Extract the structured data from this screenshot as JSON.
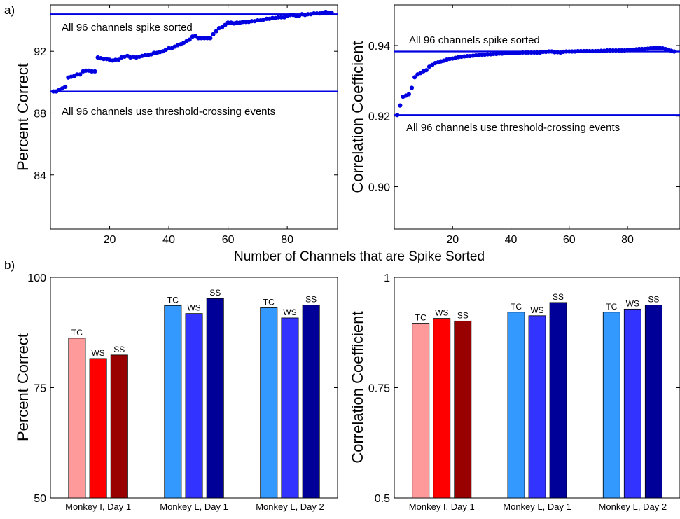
{
  "panel_labels": {
    "a": "a)",
    "b": "b)"
  },
  "shared_xlabel": "Number of Channels that are Spike Sorted",
  "chart_data": [
    {
      "type": "scatter",
      "ylabel": "Percent Correct",
      "xlim": [
        0,
        97
      ],
      "ylim": [
        80.5,
        95
      ],
      "xticks": [
        20,
        40,
        60,
        80
      ],
      "yticks": [
        84,
        88,
        92
      ],
      "color": "#0000e0",
      "hlines": [
        {
          "y": 94.4,
          "label": "All 96 channels spike sorted"
        },
        {
          "y": 89.4,
          "label": "All 96 channels use threshold-crossing events"
        }
      ],
      "x": [
        1,
        2,
        3,
        4,
        5,
        6,
        7,
        8,
        9,
        10,
        11,
        12,
        13,
        14,
        15,
        16,
        17,
        18,
        19,
        20,
        21,
        22,
        23,
        24,
        25,
        26,
        27,
        28,
        29,
        30,
        31,
        32,
        33,
        34,
        35,
        36,
        37,
        38,
        39,
        40,
        41,
        42,
        43,
        44,
        45,
        46,
        47,
        48,
        49,
        50,
        51,
        52,
        53,
        54,
        55,
        56,
        57,
        58,
        59,
        60,
        61,
        62,
        63,
        64,
        65,
        66,
        67,
        68,
        69,
        70,
        71,
        72,
        73,
        74,
        75,
        76,
        77,
        78,
        79,
        80,
        81,
        82,
        83,
        84,
        85,
        86,
        87,
        88,
        89,
        90,
        91,
        92,
        93,
        94,
        95
      ],
      "y": [
        89.4,
        89.4,
        89.5,
        89.6,
        89.7,
        90.3,
        90.35,
        90.4,
        90.5,
        90.5,
        90.7,
        90.75,
        90.75,
        90.7,
        90.7,
        91.6,
        91.55,
        91.5,
        91.5,
        91.45,
        91.4,
        91.45,
        91.45,
        91.6,
        91.65,
        91.7,
        91.6,
        91.65,
        91.6,
        91.65,
        91.7,
        91.75,
        91.75,
        91.8,
        91.9,
        91.9,
        91.95,
        92.0,
        92.1,
        92.2,
        92.2,
        92.3,
        92.4,
        92.45,
        92.55,
        92.65,
        92.75,
        92.95,
        93.0,
        92.85,
        92.85,
        92.85,
        92.85,
        92.85,
        93.1,
        93.3,
        93.5,
        93.55,
        93.7,
        93.85,
        93.85,
        93.8,
        93.85,
        93.85,
        93.9,
        93.9,
        93.9,
        93.95,
        93.95,
        94.0,
        94.0,
        94.05,
        94.1,
        94.1,
        94.15,
        94.15,
        94.2,
        94.2,
        94.2,
        94.3,
        94.35,
        94.35,
        94.3,
        94.3,
        94.4,
        94.35,
        94.4,
        94.4,
        94.45,
        94.45,
        94.45,
        94.5,
        94.55,
        94.5,
        94.5
      ]
    },
    {
      "type": "scatter",
      "ylabel": "Correlation Coefficient",
      "xlim": [
        0,
        98
      ],
      "ylim": [
        0.888,
        0.9515
      ],
      "xticks": [
        20,
        40,
        60,
        80
      ],
      "yticks": [
        0.9,
        0.92,
        0.94
      ],
      "color": "#0000e0",
      "hlines": [
        {
          "y": 0.9383,
          "label": "All 96 channels spike sorted"
        },
        {
          "y": 0.9203,
          "label": "All 96 channels use threshold-crossing events"
        }
      ],
      "x": [
        1,
        2,
        3,
        4,
        5,
        6,
        7,
        8,
        9,
        10,
        11,
        12,
        13,
        14,
        15,
        16,
        17,
        18,
        19,
        20,
        21,
        22,
        23,
        24,
        25,
        26,
        27,
        28,
        29,
        30,
        31,
        32,
        33,
        34,
        35,
        36,
        37,
        38,
        39,
        40,
        41,
        42,
        43,
        44,
        45,
        46,
        47,
        48,
        49,
        50,
        51,
        52,
        53,
        54,
        55,
        56,
        57,
        58,
        59,
        60,
        61,
        62,
        63,
        64,
        65,
        66,
        67,
        68,
        69,
        70,
        71,
        72,
        73,
        74,
        75,
        76,
        77,
        78,
        79,
        80,
        81,
        82,
        83,
        84,
        85,
        86,
        87,
        88,
        89,
        90,
        91,
        92,
        93,
        94,
        95,
        96
      ],
      "y": [
        0.9203,
        0.923,
        0.9255,
        0.9258,
        0.9262,
        0.928,
        0.931,
        0.9318,
        0.9322,
        0.9327,
        0.933,
        0.934,
        0.9345,
        0.935,
        0.9352,
        0.9355,
        0.9357,
        0.936,
        0.9362,
        0.9363,
        0.9365,
        0.9367,
        0.9368,
        0.9369,
        0.937,
        0.937,
        0.9371,
        0.9372,
        0.9373,
        0.9374,
        0.9374,
        0.9375,
        0.9375,
        0.9376,
        0.9376,
        0.9377,
        0.9377,
        0.9378,
        0.9378,
        0.9378,
        0.9379,
        0.9379,
        0.9379,
        0.938,
        0.938,
        0.938,
        0.938,
        0.938,
        0.938,
        0.938,
        0.9382,
        0.9382,
        0.9383,
        0.9383,
        0.9381,
        0.9381,
        0.938,
        0.9382,
        0.9383,
        0.9383,
        0.9383,
        0.9383,
        0.9384,
        0.9384,
        0.9384,
        0.9384,
        0.9384,
        0.9384,
        0.9384,
        0.9384,
        0.9385,
        0.9385,
        0.9386,
        0.9386,
        0.9386,
        0.9386,
        0.9386,
        0.9386,
        0.9386,
        0.9387,
        0.9387,
        0.9388,
        0.9389,
        0.939,
        0.939,
        0.939,
        0.9391,
        0.9392,
        0.9393,
        0.9393,
        0.9393,
        0.9392,
        0.939,
        0.9388,
        0.9385,
        0.9383
      ]
    },
    {
      "type": "bar",
      "ylabel": "Percent Correct",
      "ylim": [
        50,
        100
      ],
      "yticks": [
        50,
        75,
        100
      ],
      "groups": [
        "Monkey I, Day 1",
        "Monkey L, Day 1",
        "Monkey L, Day 2"
      ],
      "series": [
        {
          "name": "TC",
          "values": [
            86.2,
            93.6,
            93.1
          ],
          "colors": [
            "#ff9a9a",
            "#3399ff",
            "#3399ff"
          ]
        },
        {
          "name": "WS",
          "values": [
            81.6,
            91.8,
            90.8
          ],
          "colors": [
            "#ff0000",
            "#3333ff",
            "#3333ff"
          ]
        },
        {
          "name": "SS",
          "values": [
            82.4,
            95.2,
            93.7
          ],
          "colors": [
            "#990000",
            "#000099",
            "#000099"
          ]
        }
      ]
    },
    {
      "type": "bar",
      "ylabel": "Correlation Coefficient",
      "ylim": [
        0.5,
        1.0
      ],
      "yticks": [
        0.5,
        0.75,
        1
      ],
      "ytick_labels": [
        "0.5",
        "0.75",
        "1"
      ],
      "groups": [
        "Monkey I, Day 1",
        "Monkey L, Day 1",
        "Monkey L, Day 2"
      ],
      "series": [
        {
          "name": "TC",
          "values": [
            0.896,
            0.921,
            0.921
          ],
          "colors": [
            "#ff9a9a",
            "#3399ff",
            "#3399ff"
          ]
        },
        {
          "name": "WS",
          "values": [
            0.907,
            0.913,
            0.928
          ],
          "colors": [
            "#ff0000",
            "#3333ff",
            "#3333ff"
          ]
        },
        {
          "name": "SS",
          "values": [
            0.901,
            0.943,
            0.937
          ],
          "colors": [
            "#990000",
            "#000099",
            "#000099"
          ]
        }
      ]
    }
  ]
}
